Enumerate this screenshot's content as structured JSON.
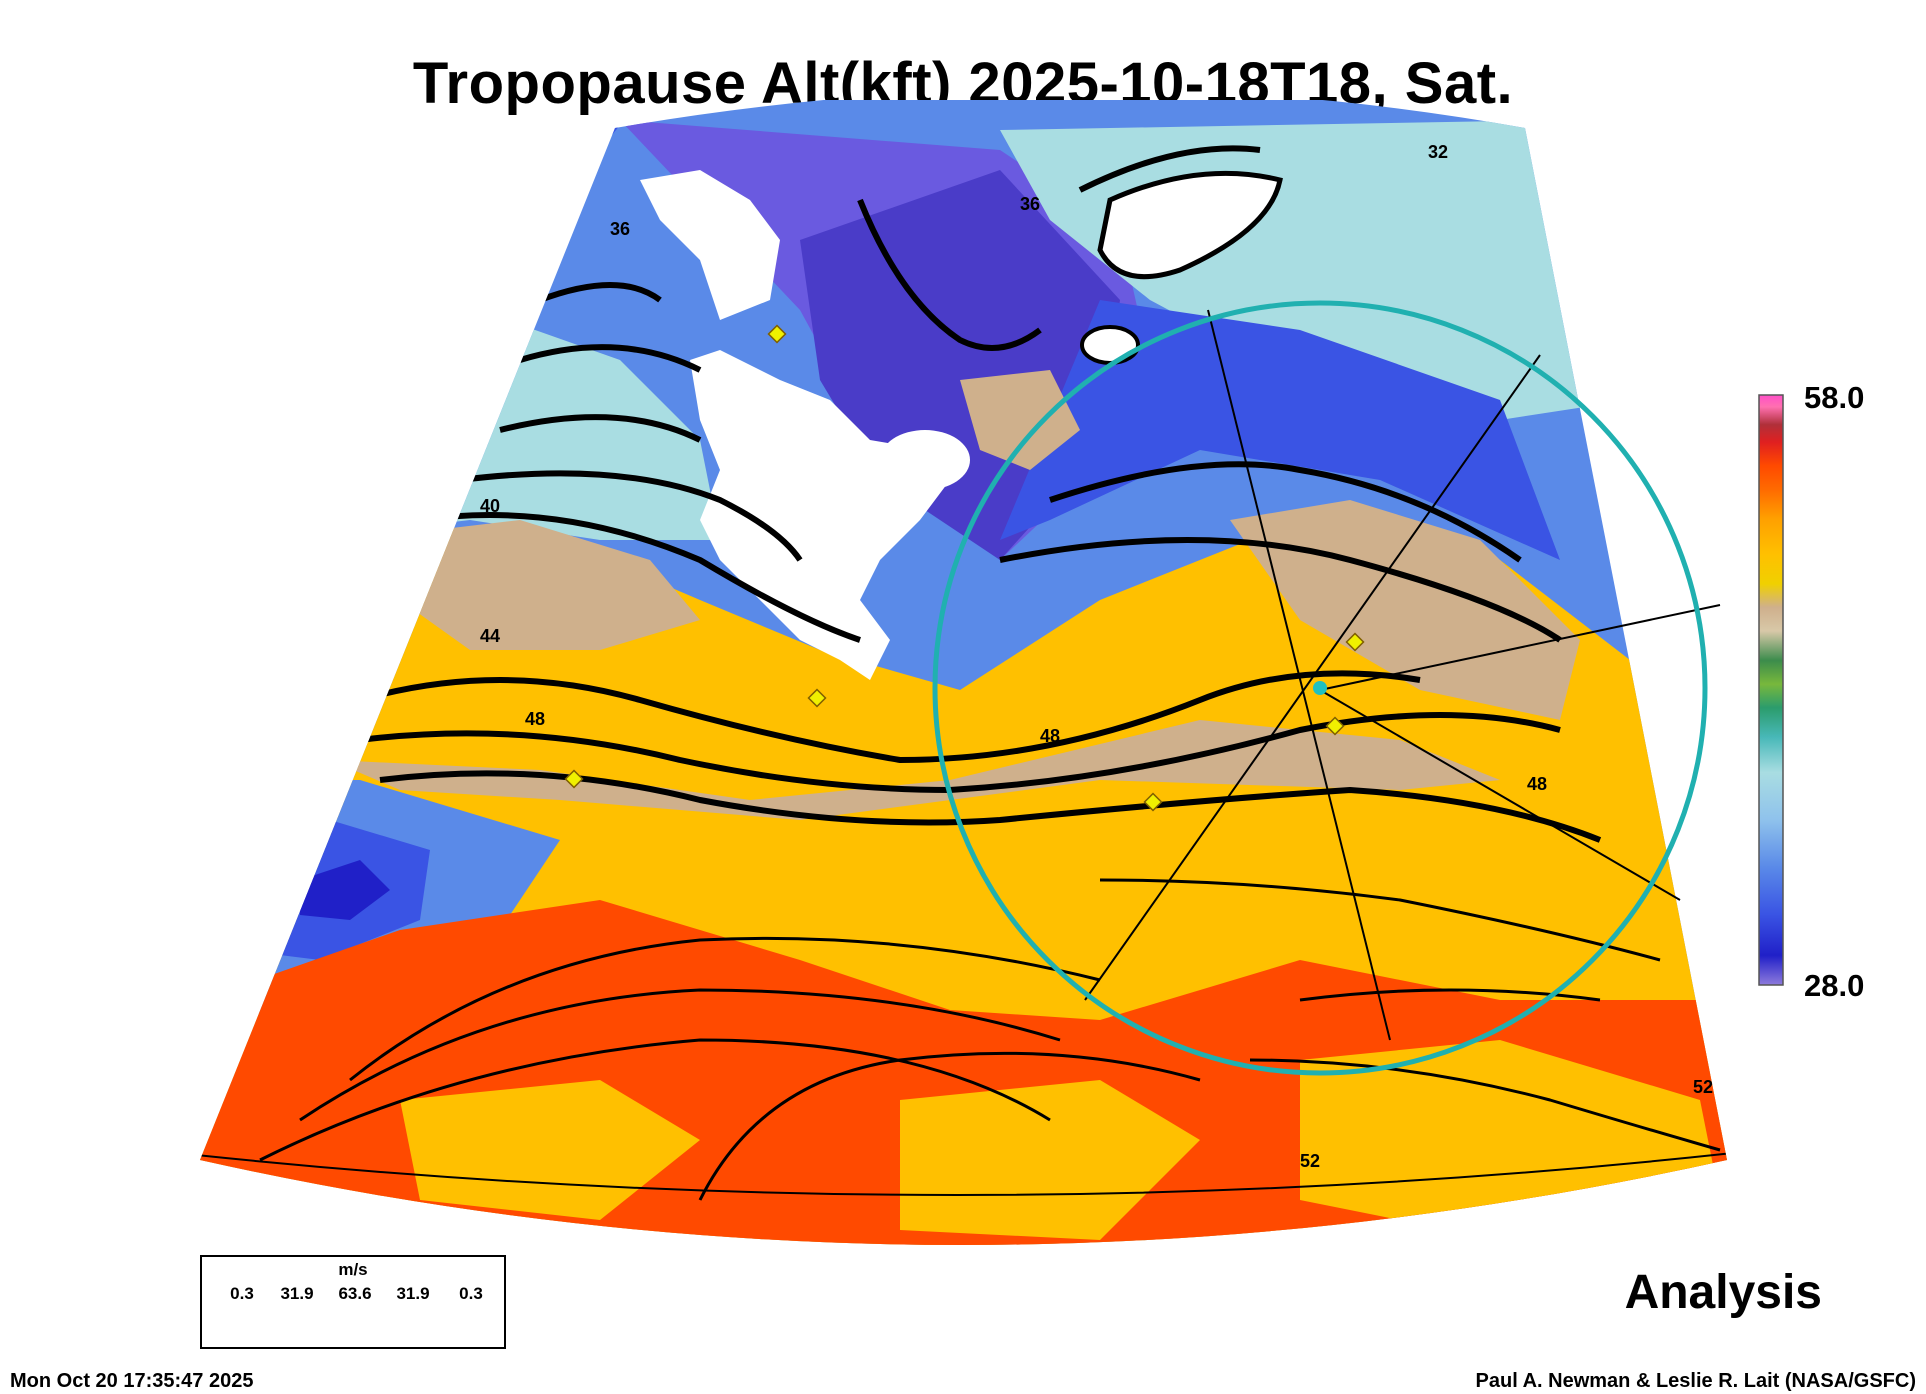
{
  "title": "Tropopause Alt(kft) 2025-10-18T18, Sat.",
  "colorbar": {
    "max_label": "58.0",
    "min_label": "28.0",
    "min": 28.0,
    "max": 58.0,
    "colors": [
      "#8e7bdc",
      "#2020c8",
      "#3a54e4",
      "#5a8ae8",
      "#8fc2ec",
      "#a9dde2",
      "#48b8b8",
      "#2b9c6c",
      "#78b83c",
      "#3c8c4c",
      "#d8c8a8",
      "#cfb08c",
      "#f0d000",
      "#ffc000",
      "#ffa000",
      "#ff6a00",
      "#ff4a00",
      "#e02020",
      "#b0303a",
      "#c85a6a",
      "#ff70b0",
      "#ff50c8"
    ]
  },
  "wind_legend": {
    "units": "m/s",
    "values": [
      "0.3",
      "31.9",
      "63.6",
      "31.9",
      "0.3"
    ]
  },
  "analysis_label": "Analysis",
  "footer": {
    "timestamp": "Mon Oct 20 17:35:47 2025",
    "credit": "Paul A. Newman & Leslie R. Lait (NASA/GSFC)"
  },
  "contour_labels": [
    "32",
    "36",
    "36",
    "40",
    "44",
    "48",
    "48",
    "48",
    "52",
    "52"
  ]
}
